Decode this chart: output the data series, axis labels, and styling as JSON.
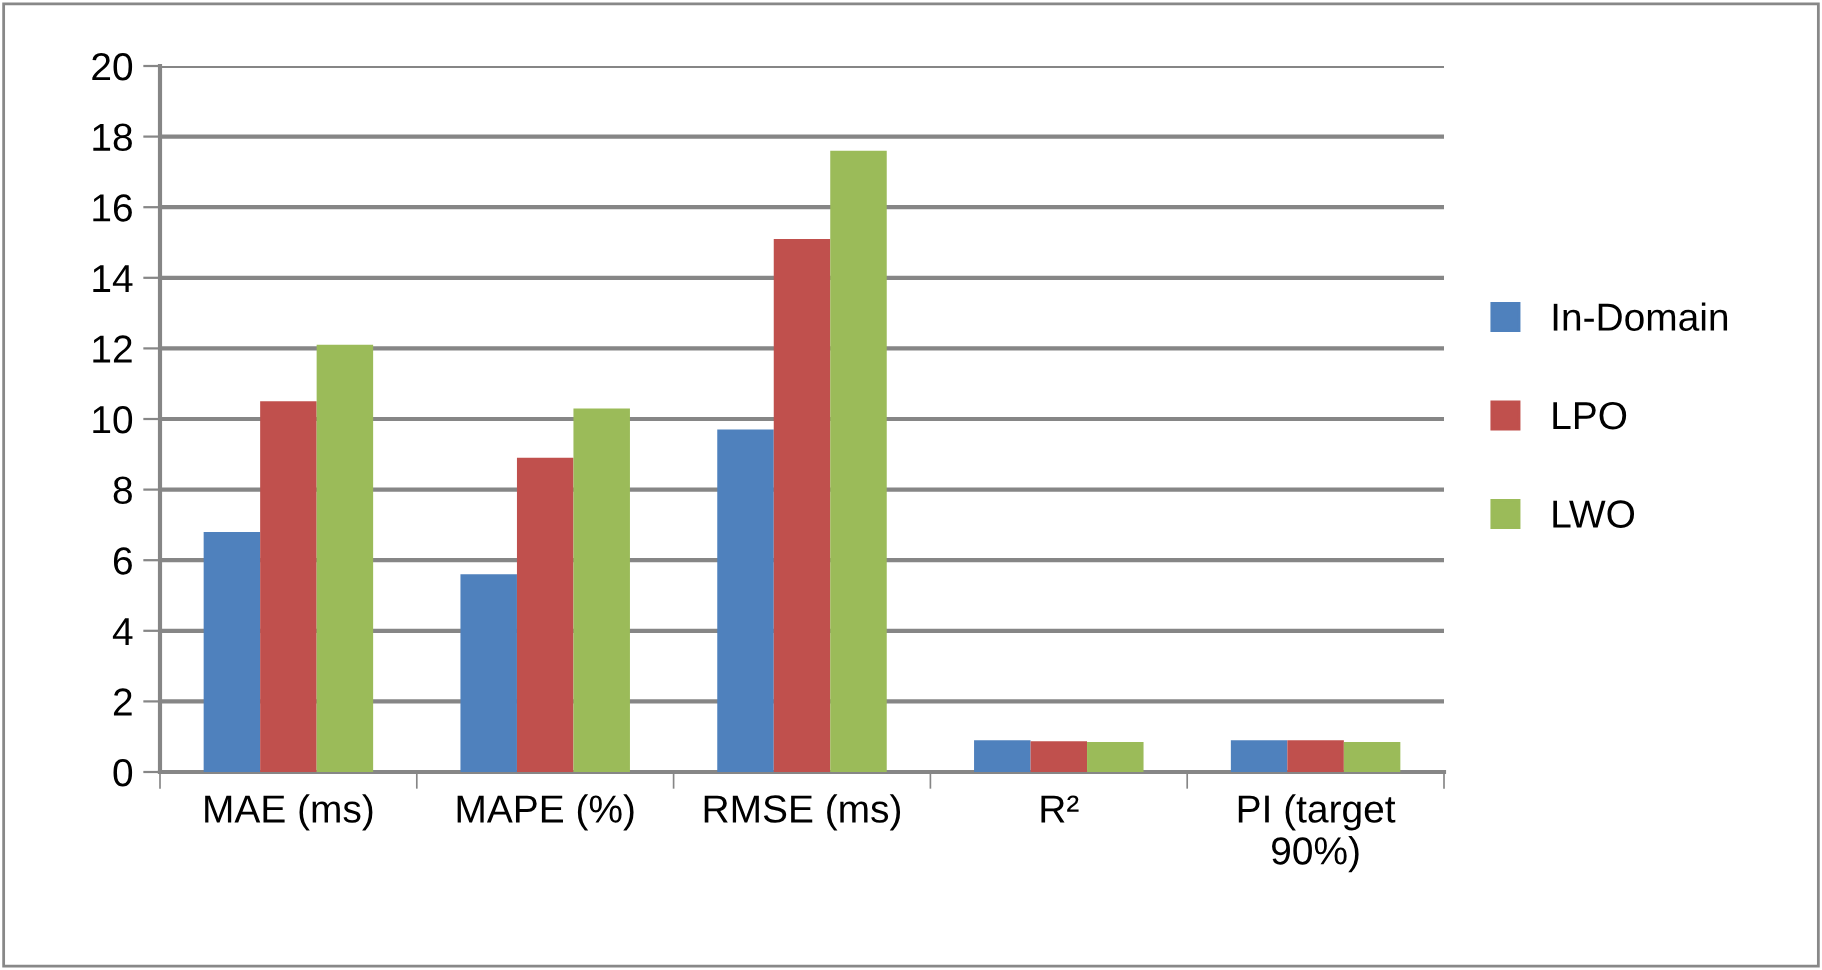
{
  "chart_data": {
    "type": "bar",
    "categories": [
      "MAE (ms)",
      "MAPE (%)",
      "RMSE (ms)",
      "R²",
      "PI (target\n90%)"
    ],
    "series": [
      {
        "name": "In-Domain",
        "color": "#4f81bd",
        "values": [
          6.8,
          5.6,
          9.7,
          0.9,
          0.9
        ]
      },
      {
        "name": "LPO",
        "color": "#c0504d",
        "values": [
          10.5,
          8.9,
          15.1,
          0.87,
          0.9
        ]
      },
      {
        "name": "LWO",
        "color": "#9bbb59",
        "values": [
          12.1,
          10.3,
          17.6,
          0.85,
          0.85
        ]
      }
    ],
    "ylim": [
      0,
      20
    ],
    "yticks": [
      0,
      2,
      4,
      6,
      8,
      10,
      12,
      14,
      16,
      18,
      20
    ],
    "grid": "y",
    "legend": "right"
  }
}
